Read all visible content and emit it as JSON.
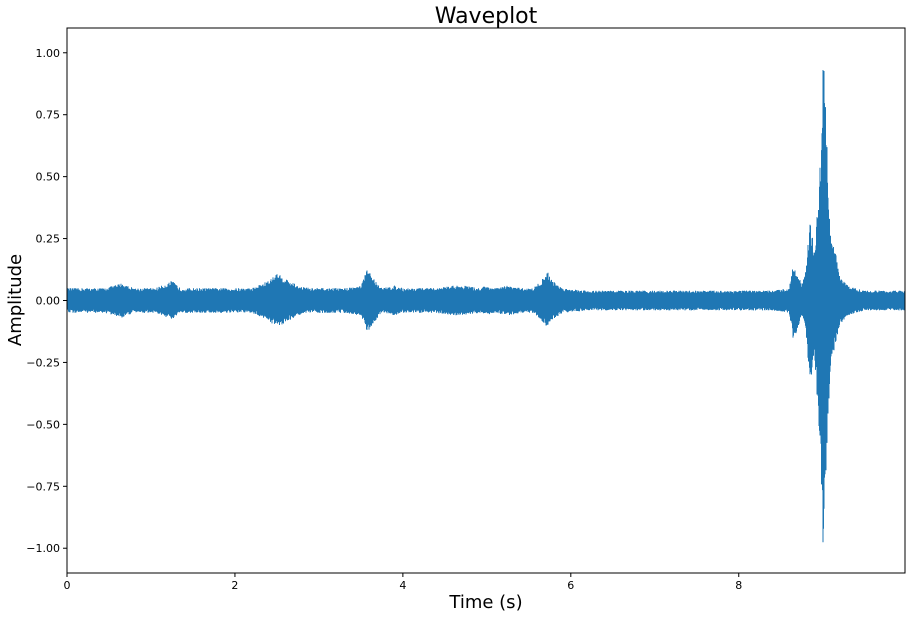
{
  "chart_data": {
    "type": "area",
    "title": "Waveplot",
    "xlabel": "Time (s)",
    "ylabel": "Amplitude",
    "xlim": [
      0,
      9.98
    ],
    "ylim": [
      -1.1,
      1.1
    ],
    "x_ticks": [
      0,
      2,
      4,
      6,
      8
    ],
    "x_tick_labels": [
      "0",
      "2",
      "4",
      "6",
      "8"
    ],
    "y_ticks": [
      1.0,
      0.75,
      0.5,
      0.25,
      0.0,
      -0.25,
      -0.5,
      -0.75,
      -1.0
    ],
    "y_tick_labels": [
      "1.00",
      "0.75",
      "0.50",
      "0.25",
      "0.00",
      "−0.25",
      "−0.50",
      "−0.75",
      "−1.00"
    ],
    "grid": false,
    "colors": {
      "waveform": "#1f77b4"
    },
    "series": [
      {
        "x": [
          0,
          0.2,
          0.45,
          0.55,
          0.65,
          0.8,
          1.05,
          1.2,
          1.25,
          1.35,
          1.6,
          2.2,
          2.4,
          2.5,
          2.6,
          2.75,
          2.9,
          3.3,
          3.5,
          3.58,
          3.65,
          3.75,
          3.9,
          4.0,
          4.2,
          4.4,
          4.6,
          4.75,
          4.9,
          5.0,
          5.1,
          5.25,
          5.4,
          5.55,
          5.65,
          5.72,
          5.78,
          5.9,
          6.2,
          7.0,
          7.5,
          8.0,
          8.4,
          8.6,
          8.65,
          8.7,
          8.75,
          8.8,
          8.85,
          8.9,
          8.95,
          8.98,
          9.0,
          9.03,
          9.06,
          9.1,
          9.15,
          9.2,
          9.3,
          9.5,
          9.98
        ],
        "upper": [
          0.05,
          0.05,
          0.05,
          0.06,
          0.07,
          0.05,
          0.05,
          0.07,
          0.08,
          0.05,
          0.05,
          0.05,
          0.08,
          0.11,
          0.09,
          0.06,
          0.05,
          0.05,
          0.06,
          0.13,
          0.09,
          0.05,
          0.06,
          0.05,
          0.05,
          0.05,
          0.06,
          0.06,
          0.05,
          0.06,
          0.05,
          0.06,
          0.05,
          0.05,
          0.08,
          0.12,
          0.08,
          0.05,
          0.04,
          0.04,
          0.04,
          0.04,
          0.04,
          0.05,
          0.15,
          0.12,
          0.06,
          0.12,
          0.33,
          0.2,
          0.45,
          0.6,
          1.0,
          0.92,
          0.5,
          0.25,
          0.2,
          0.1,
          0.06,
          0.04,
          0.04
        ],
        "lower": [
          -0.05,
          -0.05,
          -0.05,
          -0.06,
          -0.07,
          -0.05,
          -0.05,
          -0.07,
          -0.08,
          -0.05,
          -0.05,
          -0.05,
          -0.08,
          -0.11,
          -0.09,
          -0.06,
          -0.05,
          -0.05,
          -0.06,
          -0.13,
          -0.09,
          -0.05,
          -0.06,
          -0.05,
          -0.05,
          -0.05,
          -0.06,
          -0.06,
          -0.05,
          -0.06,
          -0.05,
          -0.06,
          -0.05,
          -0.05,
          -0.08,
          -0.11,
          -0.08,
          -0.05,
          -0.04,
          -0.04,
          -0.04,
          -0.04,
          -0.04,
          -0.05,
          -0.16,
          -0.12,
          -0.06,
          -0.14,
          -0.34,
          -0.22,
          -0.48,
          -0.65,
          -1.0,
          -0.85,
          -0.5,
          -0.25,
          -0.18,
          -0.1,
          -0.06,
          -0.04,
          -0.04
        ]
      }
    ]
  }
}
